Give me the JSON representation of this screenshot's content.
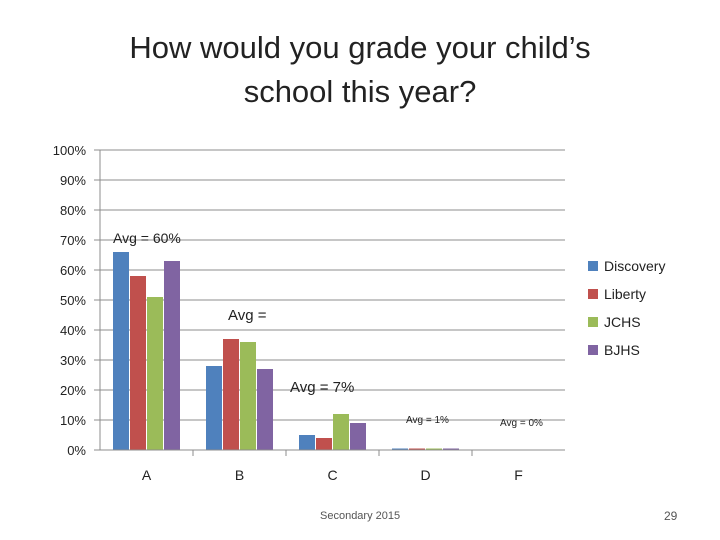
{
  "slide": {
    "title_line1": "How would you grade your child’s",
    "title_line2": "school this year?",
    "footer": "Secondary 2015",
    "page_number": "29"
  },
  "chart_data": {
    "type": "bar",
    "title": "How would you grade your child’s school this year?",
    "xlabel": "",
    "ylabel": "",
    "ylim": [
      0,
      100
    ],
    "y_ticks": [
      "0%",
      "10%",
      "20%",
      "30%",
      "40%",
      "50%",
      "60%",
      "70%",
      "80%",
      "90%",
      "100%"
    ],
    "categories": [
      "A",
      "B",
      "C",
      "D",
      "F"
    ],
    "series": [
      {
        "name": "Discovery",
        "color": "#4F81BD",
        "values": [
          66,
          28,
          5,
          0.5,
          0
        ]
      },
      {
        "name": "Liberty",
        "color": "#C0504D",
        "values": [
          58,
          37,
          4,
          0.5,
          0
        ]
      },
      {
        "name": "JCHS",
        "color": "#9BBB59",
        "values": [
          51,
          36,
          12,
          0.5,
          0
        ]
      },
      {
        "name": "BJHS",
        "color": "#8064A2",
        "values": [
          63,
          27,
          9,
          0.5,
          0
        ]
      }
    ],
    "legend_position": "right",
    "grid": true,
    "annotations": [
      {
        "text": "Avg = 60%",
        "category": "A"
      },
      {
        "text": "Avg =",
        "category": "B"
      },
      {
        "text": "Avg = 7%",
        "category": "C"
      },
      {
        "text": "Avg = 1%",
        "category": "D"
      },
      {
        "text": "Avg = 0%",
        "category": "F"
      }
    ]
  }
}
